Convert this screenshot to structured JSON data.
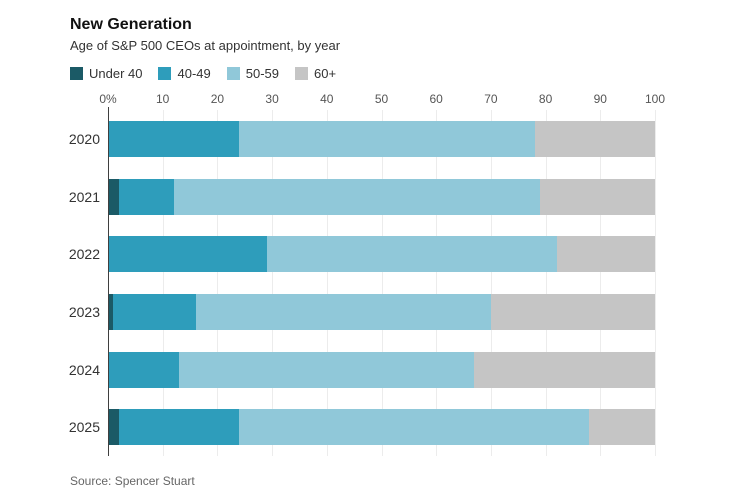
{
  "header": {
    "title": "New Generation",
    "subtitle": "Age of S&P 500 CEOs at appointment, by year"
  },
  "source": "Source: Spencer Stuart",
  "colors": {
    "under_40": "#1b5a66",
    "age_40_49": "#2e9dbb",
    "age_50_59": "#90c8d9",
    "age_60_plus": "#c5c5c5",
    "axis_line": "#3f3f3f",
    "gridline": "#ececec"
  },
  "chart_data": {
    "type": "bar",
    "stacked": true,
    "orientation": "horizontal",
    "title": "New Generation",
    "subtitle": "Age of S&P 500 CEOs at appointment, by year",
    "categories": [
      "2020",
      "2021",
      "2022",
      "2023",
      "2024",
      "2025"
    ],
    "series": [
      {
        "name": "Under 40",
        "color": "#1b5a66",
        "values": [
          0,
          2,
          0,
          1,
          0,
          2
        ]
      },
      {
        "name": "40-49",
        "color": "#2e9dbb",
        "values": [
          24,
          10,
          29,
          15,
          13,
          22
        ]
      },
      {
        "name": "50-59",
        "color": "#90c8d9",
        "values": [
          54,
          67,
          53,
          54,
          54,
          64
        ]
      },
      {
        "name": "60+",
        "color": "#c5c5c5",
        "values": [
          22,
          21,
          18,
          30,
          33,
          12
        ]
      }
    ],
    "xlabel": "",
    "ylabel": "",
    "xlim": [
      0,
      100
    ],
    "x_ticks": [
      "0%",
      "10",
      "20",
      "30",
      "40",
      "50",
      "60",
      "70",
      "80",
      "90",
      "100"
    ],
    "x_tick_values": [
      0,
      10,
      20,
      30,
      40,
      50,
      60,
      70,
      80,
      90,
      100
    ],
    "unit": "percent",
    "grid": true,
    "legend_position": "top"
  }
}
